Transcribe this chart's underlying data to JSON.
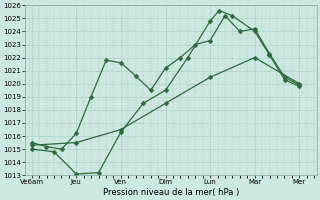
{
  "xlabel": "Pression niveau de la mer( hPa )",
  "bg_color": "#cce8e0",
  "grid_color": "#aad4c8",
  "line_color": "#2d6b3c",
  "xlabels": [
    "Ve6am",
    "Jeu",
    "Ven",
    "Dim",
    "Lun",
    "Mar",
    "Mer"
  ],
  "xtick_positions": [
    0,
    1,
    2,
    3,
    4,
    5,
    6
  ],
  "ylim": [
    1013,
    1026
  ],
  "yticks": [
    1013,
    1014,
    1015,
    1016,
    1017,
    1018,
    1019,
    1020,
    1021,
    1022,
    1023,
    1024,
    1025,
    1026
  ],
  "series1_x": [
    0,
    1,
    2,
    3,
    4,
    5,
    6
  ],
  "series1_y": [
    1015.3,
    1015.5,
    1016.5,
    1018.5,
    1020.5,
    1022.0,
    1020.0
  ],
  "series2_x": [
    0,
    0.33,
    0.67,
    1.0,
    1.33,
    1.67,
    2.0,
    2.33,
    2.67,
    3.0,
    3.33,
    3.67,
    4.0,
    4.33,
    4.67,
    5.0,
    5.33,
    5.67,
    6.0
  ],
  "series2_y": [
    1015.5,
    1015.2,
    1015.0,
    1016.2,
    1019.0,
    1021.8,
    1021.6,
    1020.6,
    1019.5,
    1021.2,
    1022.0,
    1023.0,
    1023.3,
    1025.2,
    1024.0,
    1024.2,
    1022.3,
    1020.5,
    1019.9
  ],
  "series3_x": [
    0,
    0.5,
    1.0,
    1.5,
    2.0,
    2.5,
    3.0,
    3.5,
    4.0,
    4.2,
    4.5,
    5.0,
    5.33,
    5.67,
    6.0
  ],
  "series3_y": [
    1015.0,
    1014.8,
    1013.1,
    1013.2,
    1016.3,
    1018.5,
    1019.5,
    1022.0,
    1024.8,
    1025.6,
    1025.2,
    1024.0,
    1022.2,
    1020.3,
    1019.8
  ],
  "markersize": 2.5,
  "linewidth": 0.9
}
